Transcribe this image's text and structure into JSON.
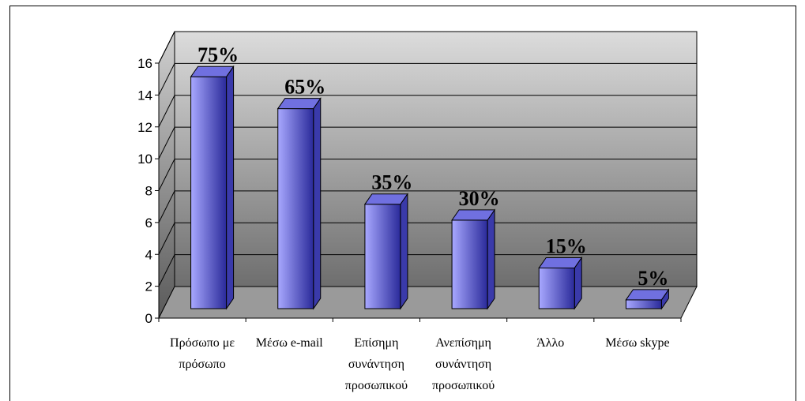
{
  "chart_data": {
    "type": "bar",
    "style": "3d-column",
    "categories": [
      [
        "Πρόσωπο με",
        "πρόσωπο"
      ],
      [
        "Μέσω e-mail"
      ],
      [
        "Επίσημη",
        "συνάντηση",
        "προσωπικού"
      ],
      [
        "Ανεπίσημη",
        "συνάντηση",
        "προσωπικού"
      ],
      [
        "Άλλο"
      ],
      [
        "Μέσω skype"
      ]
    ],
    "values": [
      15,
      13,
      7,
      6,
      3,
      1
    ],
    "data_labels": [
      "75%",
      "65%",
      "35%",
      "30%",
      "15%",
      "5%"
    ],
    "ylim": [
      0,
      16
    ],
    "yticks": [
      "0",
      "2",
      "4",
      "6",
      "8",
      "10",
      "12",
      "14",
      "16"
    ],
    "grid": true,
    "legend": "none",
    "colors": {
      "bar_front_light": "#a8a8ff",
      "bar_front_dark": "#2a2a9a",
      "bar_top": "#7070e0",
      "bar_side": "#3a3aaa",
      "wall_top": "#dcdcdc",
      "wall_bottom": "#6e6e6e"
    }
  }
}
